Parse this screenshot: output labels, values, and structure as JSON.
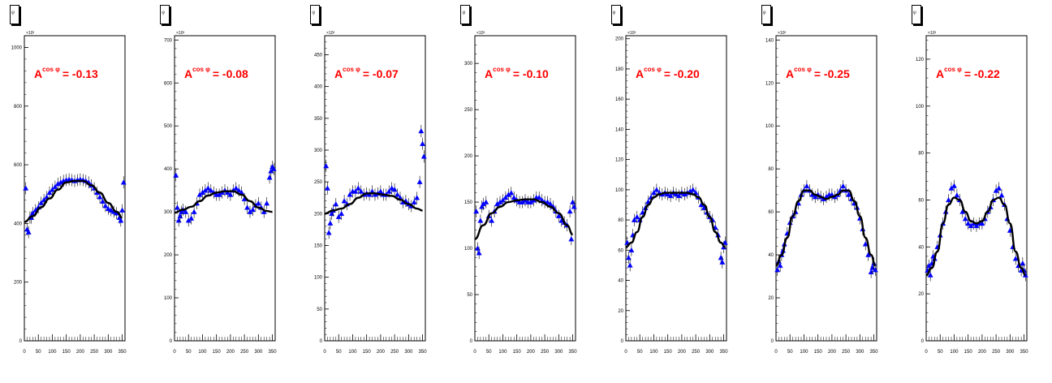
{
  "colors": {
    "marker": "#0000ff",
    "fit": "#000000",
    "annotation": "#ff0000"
  },
  "stat_box_label": "φ",
  "x_ticks": [
    0,
    50,
    100,
    150,
    200,
    250,
    300,
    350
  ],
  "chart_data": [
    {
      "type": "scatter",
      "exponent_label": "×10³",
      "annotation": {
        "base": "A",
        "sup": "cos φ",
        "text": "= -0.13"
      },
      "xlim": [
        0,
        360
      ],
      "ylim": [
        0,
        1040
      ],
      "yticks": [
        0,
        200,
        400,
        600,
        800,
        1000
      ],
      "fit": {
        "x": [
          0,
          30,
          60,
          90,
          120,
          150,
          180,
          210,
          240,
          270,
          300,
          330,
          350
        ],
        "y": [
          405,
          425,
          455,
          485,
          515,
          540,
          545,
          545,
          530,
          505,
          470,
          440,
          420
        ]
      },
      "points": {
        "x": [
          5,
          10,
          15,
          20,
          25,
          30,
          40,
          50,
          60,
          70,
          80,
          90,
          100,
          110,
          120,
          130,
          140,
          150,
          160,
          170,
          180,
          190,
          200,
          210,
          220,
          230,
          240,
          250,
          260,
          270,
          280,
          290,
          300,
          310,
          320,
          330,
          340,
          345,
          350,
          355
        ],
        "y": [
          520,
          380,
          370,
          420,
          420,
          435,
          445,
          455,
          470,
          480,
          490,
          505,
          515,
          525,
          535,
          540,
          545,
          548,
          550,
          548,
          545,
          548,
          550,
          548,
          545,
          540,
          530,
          520,
          505,
          490,
          475,
          460,
          450,
          445,
          440,
          435,
          420,
          410,
          445,
          540
        ]
      }
    },
    {
      "type": "scatter",
      "exponent_label": "×10³",
      "annotation": {
        "base": "A",
        "sup": "cos φ",
        "text": "= -0.08"
      },
      "xlim": [
        0,
        360
      ],
      "ylim": [
        0,
        710
      ],
      "yticks": [
        0,
        100,
        200,
        300,
        400,
        500,
        600,
        700
      ],
      "fit": {
        "x": [
          0,
          30,
          60,
          90,
          120,
          150,
          180,
          210,
          240,
          270,
          300,
          330,
          350
        ],
        "y": [
          298,
          305,
          312,
          325,
          338,
          345,
          348,
          348,
          340,
          325,
          310,
          302,
          300
        ]
      },
      "points": {
        "x": [
          5,
          10,
          15,
          20,
          25,
          30,
          40,
          50,
          60,
          70,
          80,
          90,
          100,
          110,
          120,
          130,
          140,
          150,
          160,
          170,
          180,
          190,
          200,
          210,
          220,
          230,
          240,
          250,
          260,
          270,
          280,
          290,
          300,
          310,
          320,
          330,
          340,
          345,
          350,
          355
        ],
        "y": [
          385,
          310,
          280,
          290,
          300,
          305,
          300,
          280,
          285,
          300,
          320,
          340,
          345,
          350,
          355,
          350,
          345,
          340,
          340,
          345,
          350,
          345,
          340,
          350,
          355,
          350,
          345,
          330,
          310,
          300,
          305,
          315,
          320,
          310,
          300,
          320,
          380,
          395,
          405,
          400
        ]
      }
    },
    {
      "type": "scatter",
      "exponent_label": "×10³",
      "annotation": {
        "base": "A",
        "sup": "cos φ",
        "text": "= -0.07"
      },
      "xlim": [
        0,
        360
      ],
      "ylim": [
        0,
        480
      ],
      "yticks": [
        0,
        50,
        100,
        150,
        200,
        250,
        300,
        350,
        400,
        450
      ],
      "fit": {
        "x": [
          0,
          30,
          60,
          90,
          120,
          150,
          180,
          210,
          240,
          270,
          300,
          330,
          350
        ],
        "y": [
          200,
          205,
          208,
          215,
          225,
          232,
          232,
          230,
          228,
          222,
          215,
          208,
          205
        ]
      },
      "points": {
        "x": [
          5,
          10,
          15,
          20,
          25,
          30,
          40,
          50,
          60,
          70,
          80,
          90,
          100,
          110,
          120,
          130,
          140,
          150,
          160,
          170,
          180,
          190,
          200,
          210,
          220,
          230,
          240,
          250,
          260,
          270,
          280,
          290,
          300,
          310,
          320,
          330,
          340,
          345,
          350,
          355
        ],
        "y": [
          275,
          240,
          170,
          185,
          200,
          205,
          215,
          195,
          200,
          220,
          215,
          230,
          235,
          235,
          240,
          235,
          230,
          232,
          230,
          235,
          230,
          232,
          235,
          230,
          230,
          235,
          240,
          238,
          230,
          225,
          218,
          220,
          215,
          212,
          218,
          225,
          250,
          330,
          310,
          290
        ]
      }
    },
    {
      "type": "scatter",
      "exponent_label": "×10³",
      "annotation": {
        "base": "A",
        "sup": "cos φ",
        "text": "= -0.10"
      },
      "xlim": [
        0,
        360
      ],
      "ylim": [
        0,
        330
      ],
      "yticks": [
        0,
        50,
        100,
        150,
        200,
        250,
        300
      ],
      "fit": {
        "x": [
          0,
          30,
          60,
          90,
          120,
          150,
          180,
          210,
          240,
          270,
          300,
          330,
          350
        ],
        "y": [
          110,
          125,
          138,
          145,
          150,
          152,
          153,
          153,
          150,
          145,
          138,
          125,
          115
        ]
      },
      "points": {
        "x": [
          5,
          10,
          15,
          20,
          25,
          30,
          40,
          50,
          60,
          70,
          80,
          90,
          100,
          110,
          120,
          130,
          140,
          150,
          160,
          170,
          180,
          190,
          200,
          210,
          220,
          230,
          240,
          250,
          260,
          270,
          280,
          290,
          300,
          310,
          320,
          330,
          340,
          345,
          350,
          355
        ],
        "y": [
          140,
          100,
          95,
          130,
          145,
          148,
          150,
          135,
          130,
          140,
          148,
          150,
          152,
          155,
          158,
          160,
          155,
          152,
          150,
          150,
          152,
          150,
          150,
          152,
          155,
          155,
          152,
          150,
          150,
          148,
          145,
          140,
          135,
          130,
          128,
          125,
          140,
          110,
          150,
          145
        ]
      }
    },
    {
      "type": "scatter",
      "exponent_label": "×10³",
      "annotation": {
        "base": "A",
        "sup": "cos φ",
        "text": "= -0.20"
      },
      "xlim": [
        0,
        360
      ],
      "ylim": [
        0,
        202
      ],
      "yticks": [
        0,
        20,
        40,
        60,
        80,
        100,
        120,
        140,
        160,
        180,
        200
      ],
      "fit": {
        "x": [
          0,
          20,
          40,
          60,
          80,
          100,
          120,
          140,
          160,
          180,
          200,
          220,
          240,
          260,
          280,
          300,
          320,
          340,
          355
        ],
        "y": [
          62,
          65,
          72,
          82,
          90,
          95,
          97,
          98,
          98,
          98,
          98,
          98,
          97,
          95,
          90,
          82,
          72,
          65,
          62
        ]
      },
      "points": {
        "x": [
          5,
          10,
          15,
          20,
          25,
          30,
          40,
          50,
          60,
          70,
          80,
          90,
          100,
          110,
          120,
          130,
          140,
          150,
          160,
          170,
          180,
          190,
          200,
          210,
          220,
          230,
          240,
          250,
          260,
          270,
          280,
          290,
          300,
          310,
          320,
          330,
          340,
          345,
          350,
          355
        ],
        "y": [
          65,
          55,
          50,
          60,
          70,
          80,
          82,
          80,
          85,
          88,
          92,
          95,
          98,
          100,
          98,
          97,
          98,
          97,
          96,
          98,
          97,
          96,
          98,
          97,
          98,
          99,
          100,
          98,
          95,
          90,
          88,
          85,
          82,
          80,
          75,
          70,
          55,
          52,
          62,
          65
        ]
      }
    },
    {
      "type": "scatter",
      "exponent_label": "×10³",
      "annotation": {
        "base": "A",
        "sup": "cos φ",
        "text": "= -0.25"
      },
      "xlim": [
        0,
        360
      ],
      "ylim": [
        0,
        142
      ],
      "yticks": [
        0,
        20,
        40,
        60,
        80,
        100,
        120,
        140
      ],
      "fit": {
        "x": [
          0,
          20,
          40,
          60,
          80,
          100,
          120,
          140,
          160,
          180,
          200,
          220,
          240,
          260,
          280,
          300,
          320,
          340,
          355
        ],
        "y": [
          35,
          40,
          48,
          58,
          65,
          70,
          70,
          68,
          67,
          66,
          67,
          68,
          70,
          70,
          65,
          58,
          48,
          40,
          35
        ]
      },
      "points": {
        "x": [
          5,
          10,
          15,
          20,
          25,
          30,
          40,
          50,
          60,
          70,
          80,
          90,
          100,
          110,
          120,
          130,
          140,
          150,
          160,
          170,
          180,
          190,
          200,
          210,
          220,
          230,
          240,
          250,
          260,
          270,
          280,
          290,
          300,
          310,
          320,
          330,
          340,
          345,
          350,
          355
        ],
        "y": [
          33,
          37,
          35,
          40,
          42,
          45,
          50,
          55,
          58,
          60,
          64,
          68,
          70,
          72,
          70,
          68,
          67,
          68,
          67,
          66,
          67,
          68,
          68,
          67,
          68,
          70,
          72,
          70,
          68,
          66,
          64,
          62,
          57,
          52,
          45,
          40,
          32,
          34,
          36,
          33
        ]
      }
    },
    {
      "type": "scatter",
      "exponent_label": "×10³",
      "annotation": {
        "base": "A",
        "sup": "cos φ",
        "text": "= -0.22"
      },
      "xlim": [
        0,
        360
      ],
      "ylim": [
        0,
        130
      ],
      "yticks": [
        0,
        20,
        40,
        60,
        80,
        100,
        120
      ],
      "fit": {
        "x": [
          0,
          20,
          40,
          60,
          80,
          100,
          120,
          140,
          160,
          180,
          200,
          220,
          240,
          260,
          280,
          300,
          320,
          340,
          355
        ],
        "y": [
          28,
          31,
          38,
          50,
          58,
          61,
          60,
          55,
          51,
          50,
          51,
          55,
          60,
          61,
          58,
          50,
          38,
          31,
          28
        ]
      },
      "points": {
        "x": [
          5,
          10,
          15,
          20,
          25,
          30,
          40,
          50,
          60,
          70,
          80,
          90,
          100,
          110,
          120,
          130,
          140,
          150,
          160,
          170,
          180,
          190,
          200,
          210,
          220,
          230,
          240,
          250,
          260,
          270,
          280,
          290,
          300,
          310,
          320,
          330,
          340,
          345,
          350,
          355
        ],
        "y": [
          30,
          32,
          28,
          33,
          36,
          35,
          40,
          45,
          50,
          55,
          60,
          65,
          66,
          62,
          60,
          55,
          52,
          50,
          49,
          50,
          49,
          50,
          50,
          52,
          55,
          57,
          60,
          64,
          65,
          62,
          58,
          52,
          47,
          40,
          35,
          32,
          30,
          33,
          30,
          28
        ]
      }
    }
  ]
}
